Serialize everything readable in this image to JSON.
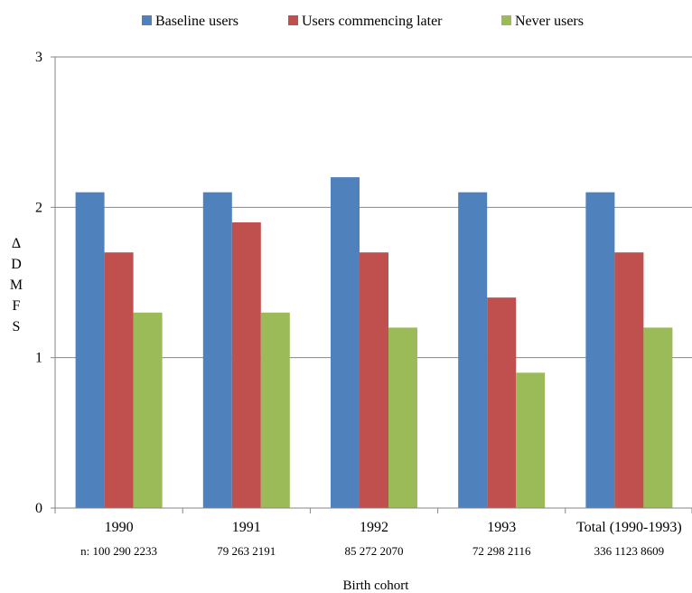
{
  "chart_data": {
    "type": "bar",
    "title": "",
    "xlabel": "Birth cohort",
    "ylabel": "ΔDMFS",
    "ylabel_chars": [
      "Δ",
      "D",
      "M",
      "F",
      "S"
    ],
    "ylim": [
      0,
      3
    ],
    "yticks": [
      "0",
      "1",
      "2",
      "3"
    ],
    "grid": "horizontal",
    "legend_position": "top",
    "categories": [
      "1990",
      "1991",
      "1992",
      "1993",
      "Total (1990-1993)"
    ],
    "n_prefix": "n:",
    "n_labels": [
      "100  290  2233",
      "79  263  2191",
      "85  272  2070",
      "72  298  2116",
      "336  1123  8609"
    ],
    "series": [
      {
        "name": "Baseline users",
        "color": "#4F81BD",
        "values": [
          2.1,
          2.1,
          2.2,
          2.1,
          2.1
        ]
      },
      {
        "name": "Users commencing later",
        "color": "#C0504D",
        "values": [
          1.7,
          1.9,
          1.7,
          1.4,
          1.7
        ]
      },
      {
        "name": "Never users",
        "color": "#9BBB59",
        "values": [
          1.3,
          1.3,
          1.2,
          0.9,
          1.2
        ]
      }
    ]
  }
}
